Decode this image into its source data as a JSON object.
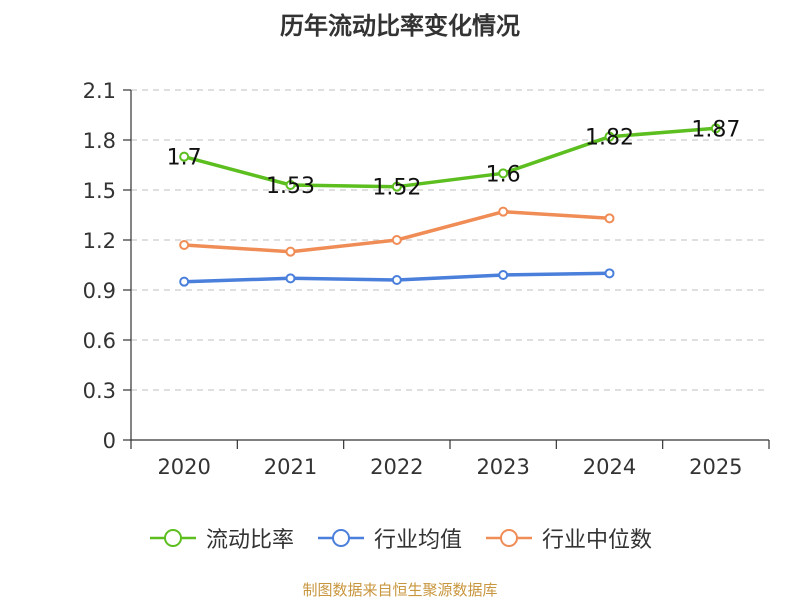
{
  "chart_data": {
    "type": "line",
    "title": "历年流动比率变化情况",
    "categories": [
      "2020",
      "2021",
      "2022",
      "2023",
      "2024",
      "2025"
    ],
    "ylim": [
      0,
      2.1
    ],
    "yticks": [
      "0",
      "0.3",
      "0.6",
      "0.9",
      "1.2",
      "1.5",
      "1.8",
      "2.1"
    ],
    "grid": true,
    "legend_position": "bottom",
    "series": [
      {
        "name": "流动比率",
        "color": "#5cbf1f",
        "values": [
          1.7,
          1.53,
          1.52,
          1.6,
          1.82,
          1.87
        ],
        "labels": [
          "1.7",
          "1.53",
          "1.52",
          "1.6",
          "1.82",
          "1.87"
        ]
      },
      {
        "name": "行业均值",
        "color": "#4a7fdb",
        "values": [
          0.95,
          0.97,
          0.96,
          0.99,
          1.0,
          null
        ]
      },
      {
        "name": "行业中位数",
        "color": "#f08c55",
        "values": [
          1.17,
          1.13,
          1.2,
          1.37,
          1.33,
          null
        ]
      }
    ]
  },
  "source_note": "制图数据来自恒生聚源数据库"
}
